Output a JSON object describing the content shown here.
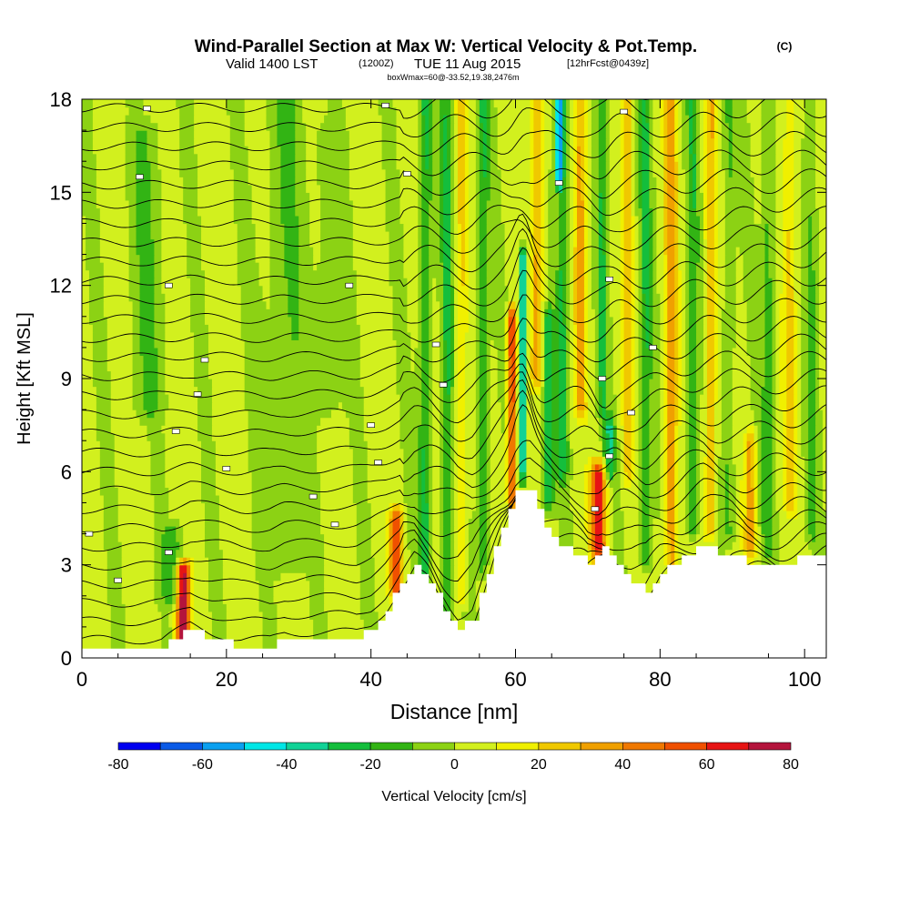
{
  "header": {
    "title": "Wind-Parallel Section at Max W: Vertical Velocity & Pot.Temp.",
    "title_mark": "(C)",
    "valid_prefix": "Valid 1400 LST",
    "valid_zulu": "(1200Z)",
    "valid_date": "TUE 11 Aug 2015",
    "valid_fcst": "[12hrFcst@0439z]",
    "boxline": "boxWmax=60@-33.52,19.38,2476m"
  },
  "chart_data": {
    "type": "heatmap",
    "xlabel": "Distance [nm]",
    "ylabel": "Height [Kft MSL]",
    "xlim": [
      0,
      103
    ],
    "ylim": [
      0,
      18
    ],
    "x_ticks": [
      0,
      20,
      40,
      60,
      80,
      100
    ],
    "y_ticks": [
      0,
      3,
      6,
      9,
      12,
      15,
      18
    ],
    "colorbar": {
      "label": "Vertical Velocity [cm/s]",
      "tick_values": [
        -80,
        -60,
        -40,
        -20,
        0,
        20,
        40,
        60,
        80
      ],
      "levels": [
        -80,
        -70,
        -60,
        -50,
        -40,
        -30,
        -20,
        -10,
        0,
        10,
        20,
        30,
        40,
        50,
        60,
        70,
        80
      ],
      "colors": [
        "#0000f0",
        "#0a5ae6",
        "#0aa0f0",
        "#00e6e6",
        "#10d296",
        "#14be3c",
        "#32b414",
        "#8cd214",
        "#d2f01e",
        "#f0f000",
        "#f0c800",
        "#f0a000",
        "#f07800",
        "#f05000",
        "#e61414",
        "#b4143c"
      ]
    },
    "terrain": [
      [
        0,
        0.3
      ],
      [
        11,
        0.3
      ],
      [
        13,
        0.6
      ],
      [
        15,
        0.9
      ],
      [
        18,
        0.6
      ],
      [
        22,
        0.3
      ],
      [
        26,
        0.3
      ],
      [
        28,
        0.6
      ],
      [
        38,
        0.6
      ],
      [
        40,
        0.9
      ],
      [
        42,
        1.5
      ],
      [
        44,
        2.4
      ],
      [
        46,
        3.0
      ],
      [
        48,
        2.4
      ],
      [
        50,
        1.5
      ],
      [
        52,
        0.9
      ],
      [
        54,
        1.2
      ],
      [
        56,
        2.7
      ],
      [
        58,
        4.2
      ],
      [
        60,
        5.4
      ],
      [
        62,
        5.4
      ],
      [
        64,
        4.2
      ],
      [
        66,
        3.6
      ],
      [
        68,
        3.3
      ],
      [
        70,
        3.0
      ],
      [
        72,
        3.6
      ],
      [
        74,
        3.0
      ],
      [
        76,
        2.4
      ],
      [
        78,
        2.1
      ],
      [
        80,
        2.7
      ],
      [
        82,
        3.0
      ],
      [
        84,
        3.3
      ],
      [
        86,
        3.6
      ],
      [
        88,
        3.3
      ],
      [
        90,
        3.3
      ],
      [
        92,
        3.0
      ],
      [
        94,
        3.0
      ],
      [
        103,
        3.3
      ]
    ],
    "theta_label_points": [
      [
        1,
        4.0
      ],
      [
        5,
        2.5
      ],
      [
        8,
        15.5
      ],
      [
        9,
        17.7
      ],
      [
        12,
        3.4
      ],
      [
        12,
        12.0
      ],
      [
        13,
        7.3
      ],
      [
        16,
        8.5
      ],
      [
        17,
        9.6
      ],
      [
        20,
        6.1
      ],
      [
        32,
        5.2
      ],
      [
        35,
        4.3
      ],
      [
        37,
        12.0
      ],
      [
        40,
        7.5
      ],
      [
        41,
        6.3
      ],
      [
        42,
        17.8
      ],
      [
        45,
        15.6
      ],
      [
        49,
        10.1
      ],
      [
        50,
        8.8
      ],
      [
        66,
        15.3
      ],
      [
        72,
        9.0
      ],
      [
        73,
        12.2
      ],
      [
        73,
        6.5
      ],
      [
        75,
        17.6
      ],
      [
        71,
        4.8
      ],
      [
        76,
        7.9
      ],
      [
        79,
        10.0
      ]
    ]
  }
}
